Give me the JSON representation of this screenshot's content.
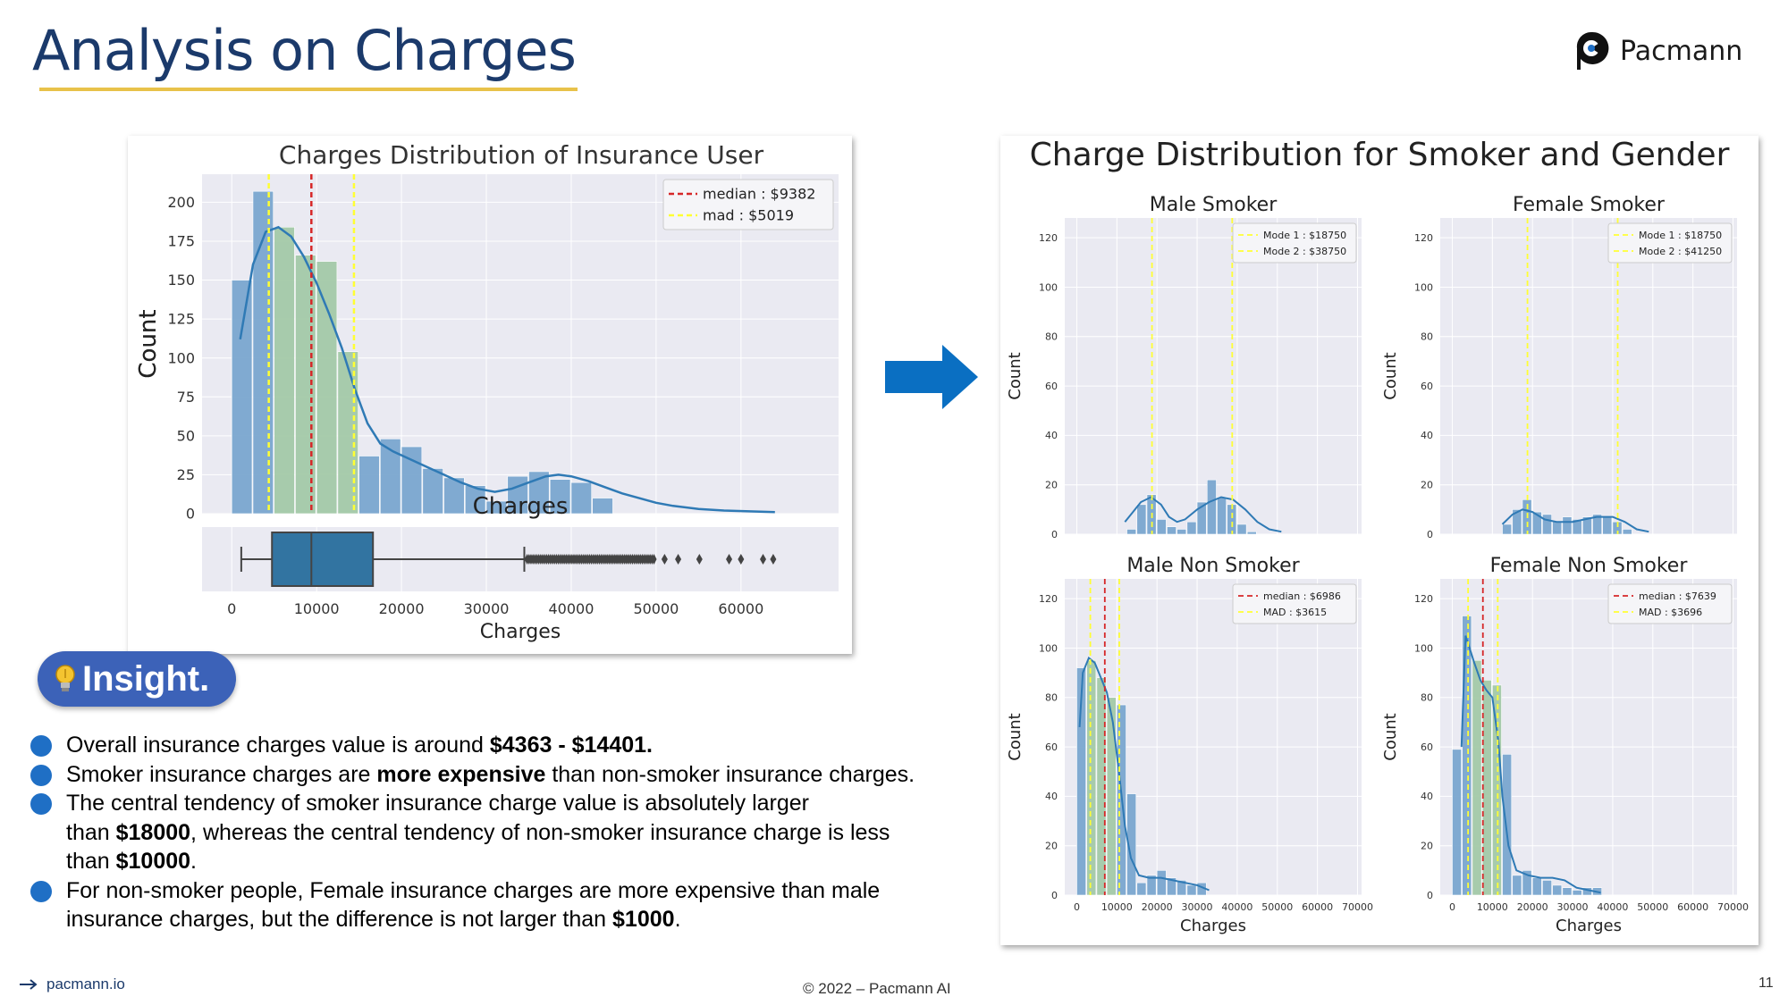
{
  "slide": {
    "title": "Analysis on Charges",
    "logo_text": "Pacmann",
    "insight_label": "Insight.",
    "footer_link": "pacmann.io",
    "footer_copyright": "© 2022 – Pacmann AI",
    "page_number": "11",
    "bullets": [
      {
        "pre": "Overall insurance charges value is around ",
        "bold": "$4363 - $14401.",
        "post": ""
      },
      {
        "pre": "Smoker insurance charges are ",
        "bold": "more expensive",
        "post": " than non-smoker insurance charges."
      },
      {
        "line1": "The central tendency of smoker insurance charge value is absolutely larger",
        "pre": "than ",
        "bold": "$18000",
        "mid": ", whereas the central tendency of non-smoker insurance charge is less",
        "pre2": "than ",
        "bold2": "$10000",
        "post2": "."
      },
      {
        "line1": "For non-smoker people, Female insurance charges are more expensive than male",
        "pre": "insurance charges, but the difference is not larger than ",
        "bold": "$1000",
        "post": "."
      }
    ]
  },
  "colors": {
    "title": "#1b3a6b",
    "underline": "#e8c24a",
    "accent_blue": "#0a6fc2",
    "bar": "#7aa6cf",
    "kde": "#2f7ab5",
    "median": "#d62728",
    "mad": "#ffff33",
    "plot_bg": "#eaeaf2",
    "insight_pill": "#3c62b8"
  },
  "chart_data": [
    {
      "type": "bar",
      "title": "Charges Distribution of Insurance User",
      "xlabel": "Charges",
      "ylabel": "Count",
      "xlim": [
        -3500,
        71500
      ],
      "ylim": [
        0,
        218
      ],
      "xticks": [
        0,
        10000,
        20000,
        30000,
        40000,
        50000,
        60000
      ],
      "yticks": [
        0,
        25,
        50,
        75,
        100,
        125,
        150,
        175,
        200
      ],
      "bin_width": 2500,
      "bin_start": 0,
      "values": [
        150,
        207,
        184,
        166,
        162,
        104,
        37,
        48,
        43,
        29,
        23,
        18,
        8,
        24,
        27,
        22,
        20,
        10
      ],
      "kde": [
        [
          1000,
          112
        ],
        [
          2500,
          160
        ],
        [
          4000,
          181
        ],
        [
          5500,
          184
        ],
        [
          7000,
          178
        ],
        [
          8500,
          165
        ],
        [
          10000,
          148
        ],
        [
          11500,
          128
        ],
        [
          13000,
          106
        ],
        [
          14500,
          80
        ],
        [
          16000,
          58
        ],
        [
          17500,
          45
        ],
        [
          19000,
          40
        ],
        [
          21000,
          35
        ],
        [
          23000,
          30
        ],
        [
          25000,
          25
        ],
        [
          27000,
          20
        ],
        [
          29000,
          16
        ],
        [
          31000,
          14
        ],
        [
          33000,
          16
        ],
        [
          35000,
          20
        ],
        [
          37000,
          24
        ],
        [
          38500,
          25
        ],
        [
          40000,
          24
        ],
        [
          42000,
          21
        ],
        [
          44000,
          17
        ],
        [
          46000,
          13
        ],
        [
          48000,
          10
        ],
        [
          50000,
          7
        ],
        [
          52000,
          5
        ],
        [
          55000,
          3
        ],
        [
          58000,
          2
        ],
        [
          61000,
          1.5
        ],
        [
          64000,
          1
        ]
      ],
      "highlight_range": [
        4363,
        14401
      ],
      "vlines": [
        {
          "name": "median : $9382",
          "x": 9382,
          "style": "median"
        },
        {
          "name": "mad : $5019",
          "x": 4363,
          "style": "mad"
        },
        {
          "name": "",
          "x": 14401,
          "style": "mad"
        }
      ],
      "legend": "top-right",
      "boxplot": {
        "whisker_low": 1122,
        "q1": 4740,
        "median": 9382,
        "q3": 16640,
        "whisker_high": 34472,
        "outliers": [
          35000,
          36500,
          38000,
          39500,
          41000,
          42500,
          44000,
          45500,
          47000,
          48500,
          49500,
          51000,
          52600,
          55100,
          58600,
          60000,
          62600,
          63800
        ]
      }
    },
    {
      "type": "bar",
      "title": "Charge Distribution for Smoker and Gender",
      "subplots": [
        {
          "title": "Male Smoker",
          "ylabel": "Count",
          "xlabel": "",
          "xlim": [
            -3000,
            71000
          ],
          "ylim": [
            0,
            128
          ],
          "yticks": [
            0,
            20,
            40,
            60,
            80,
            100,
            120
          ],
          "bin_width": 2500,
          "bin_start": 12500,
          "values": [
            2,
            12,
            16,
            6,
            3,
            2,
            5,
            13,
            22,
            15,
            12,
            4,
            1
          ],
          "kde": [
            [
              12000,
              5
            ],
            [
              14000,
              9
            ],
            [
              16000,
              13
            ],
            [
              18500,
              15
            ],
            [
              21000,
              12
            ],
            [
              23000,
              7
            ],
            [
              25000,
              5
            ],
            [
              27000,
              6
            ],
            [
              30000,
              10
            ],
            [
              33000,
              13
            ],
            [
              36000,
              15
            ],
            [
              39000,
              14
            ],
            [
              42000,
              10
            ],
            [
              45000,
              5
            ],
            [
              48000,
              2
            ],
            [
              51000,
              1
            ]
          ],
          "vlines": [
            {
              "name": "Mode 1 : $18750",
              "x": 18750,
              "style": "mode"
            },
            {
              "name": "Mode 2 : $38750",
              "x": 38750,
              "style": "mode"
            }
          ],
          "legend": "top-right"
        },
        {
          "title": "Female Smoker",
          "ylabel": "Count",
          "xlabel": "",
          "xlim": [
            -3000,
            71000
          ],
          "ylim": [
            0,
            128
          ],
          "yticks": [
            0,
            20,
            40,
            60,
            80,
            100,
            120
          ],
          "bin_width": 2500,
          "bin_start": 12500,
          "values": [
            4,
            10,
            14,
            9,
            8,
            5,
            7,
            6,
            7,
            8,
            7,
            5,
            2
          ],
          "kde": [
            [
              12500,
              4
            ],
            [
              15000,
              8
            ],
            [
              17500,
              10
            ],
            [
              20000,
              9
            ],
            [
              23000,
              6
            ],
            [
              26000,
              5
            ],
            [
              30000,
              5
            ],
            [
              33000,
              6
            ],
            [
              36000,
              7
            ],
            [
              40000,
              7
            ],
            [
              43000,
              5
            ],
            [
              46000,
              2
            ],
            [
              49000,
              1
            ]
          ],
          "vlines": [
            {
              "name": "Mode 1 : $18750",
              "x": 18750,
              "style": "mode"
            },
            {
              "name": "Mode 2 : $41250",
              "x": 41250,
              "style": "mode"
            }
          ],
          "legend": "top-right"
        },
        {
          "title": "Male Non Smoker",
          "ylabel": "Count",
          "xlabel": "Charges",
          "xlim": [
            -3000,
            71000
          ],
          "ylim": [
            0,
            128
          ],
          "xticks": [
            0,
            10000,
            20000,
            30000,
            40000,
            50000,
            60000,
            70000
          ],
          "yticks": [
            0,
            20,
            40,
            60,
            80,
            100,
            120
          ],
          "bin_width": 2500,
          "bin_start": 0,
          "values": [
            92,
            95,
            88,
            80,
            77,
            41,
            5,
            8,
            10,
            7,
            6,
            4,
            5
          ],
          "kde": [
            [
              700,
              68
            ],
            [
              1500,
              90
            ],
            [
              3000,
              96
            ],
            [
              4500,
              94
            ],
            [
              6000,
              88
            ],
            [
              7500,
              82
            ],
            [
              9000,
              70
            ],
            [
              10500,
              50
            ],
            [
              12000,
              28
            ],
            [
              13500,
              15
            ],
            [
              15500,
              8
            ],
            [
              18000,
              7
            ],
            [
              21000,
              7
            ],
            [
              24000,
              6
            ],
            [
              27000,
              5
            ],
            [
              30000,
              4
            ],
            [
              33000,
              2
            ]
          ],
          "highlight_range": [
            3371,
            10601
          ],
          "vlines": [
            {
              "name": "median : $6986",
              "x": 6986,
              "style": "median"
            },
            {
              "name": "MAD : $3615",
              "x": 3371,
              "style": "mad"
            },
            {
              "name": "",
              "x": 10601,
              "style": "mad"
            }
          ],
          "legend": "top-right"
        },
        {
          "title": "Female Non Smoker",
          "ylabel": "Count",
          "xlabel": "Charges",
          "xlim": [
            -3000,
            71000
          ],
          "ylim": [
            0,
            128
          ],
          "xticks": [
            0,
            10000,
            20000,
            30000,
            40000,
            50000,
            60000,
            70000
          ],
          "yticks": [
            0,
            20,
            40,
            60,
            80,
            100,
            120
          ],
          "bin_width": 2500,
          "bin_start": 0,
          "values": [
            59,
            113,
            95,
            87,
            85,
            57,
            8,
            10,
            7,
            6,
            4,
            3,
            2,
            3,
            3
          ],
          "kde": [
            [
              2300,
              60
            ],
            [
              3300,
              105
            ],
            [
              4300,
              100
            ],
            [
              5500,
              94
            ],
            [
              7000,
              87
            ],
            [
              8500,
              83
            ],
            [
              10000,
              80
            ],
            [
              11500,
              62
            ],
            [
              12500,
              40
            ],
            [
              14000,
              20
            ],
            [
              16000,
              10
            ],
            [
              19000,
              8
            ],
            [
              22000,
              7
            ],
            [
              25000,
              7
            ],
            [
              28000,
              6
            ],
            [
              31000,
              3
            ],
            [
              34000,
              2
            ],
            [
              37000,
              1
            ]
          ],
          "highlight_range": [
            3943,
            11335
          ],
          "vlines": [
            {
              "name": "median : $7639",
              "x": 7639,
              "style": "median"
            },
            {
              "name": "MAD : $3696",
              "x": 3943,
              "style": "mad"
            },
            {
              "name": "",
              "x": 11335,
              "style": "mad"
            }
          ],
          "legend": "top-right"
        }
      ]
    }
  ]
}
